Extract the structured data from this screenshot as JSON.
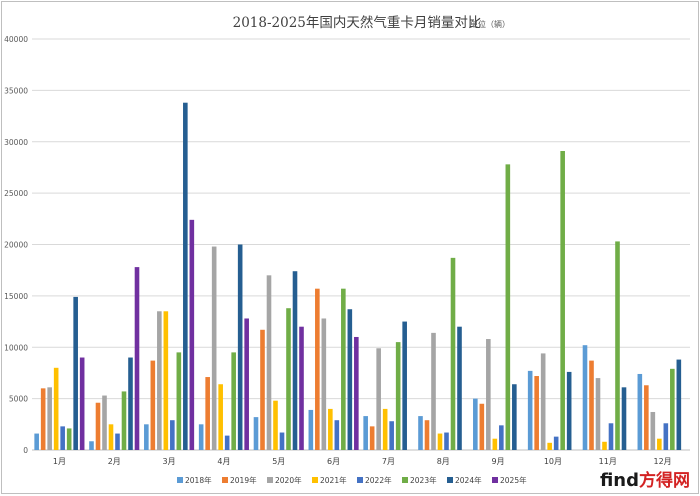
{
  "chart_data": {
    "type": "bar",
    "title": "2018-2025年国内天然气重卡月销量对比",
    "unit_note": "单位（辆）",
    "categories": [
      "1月",
      "2月",
      "3月",
      "4月",
      "5月",
      "6月",
      "7月",
      "8月",
      "9月",
      "10月",
      "11月",
      "12月"
    ],
    "ylim": [
      0,
      40000
    ],
    "yticks": [
      0,
      5000,
      10000,
      15000,
      20000,
      25000,
      30000,
      35000,
      40000
    ],
    "grid": true,
    "legend_position": "bottom",
    "series": [
      {
        "name": "2018年",
        "color": "#5b9bd5",
        "values": [
          1600,
          850,
          2500,
          2500,
          3200,
          3900,
          3300,
          3300,
          5000,
          7700,
          10200,
          7400
        ]
      },
      {
        "name": "2019年",
        "color": "#ed7d31",
        "values": [
          6000,
          4600,
          8700,
          7100,
          11700,
          15700,
          2300,
          2900,
          4500,
          7200,
          8700,
          6300
        ]
      },
      {
        "name": "2020年",
        "color": "#a5a5a5",
        "values": [
          6100,
          5300,
          13500,
          19800,
          17000,
          12800,
          9900,
          11400,
          10800,
          9400,
          7000,
          3700
        ]
      },
      {
        "name": "2021年",
        "color": "#ffc000",
        "values": [
          8000,
          2500,
          13500,
          6400,
          4800,
          4000,
          4000,
          1600,
          1100,
          700,
          800,
          1100
        ]
      },
      {
        "name": "2022年",
        "color": "#4472c4",
        "values": [
          2300,
          1600,
          2900,
          1400,
          1700,
          2900,
          2800,
          1700,
          2400,
          1300,
          2600,
          2600
        ]
      },
      {
        "name": "2023年",
        "color": "#70ad47",
        "values": [
          2100,
          5700,
          9500,
          9500,
          13800,
          15700,
          10500,
          18700,
          27800,
          29100,
          20300,
          7900
        ]
      },
      {
        "name": "2024年",
        "color": "#255e91",
        "values": [
          14900,
          9000,
          33800,
          20000,
          17400,
          13700,
          12500,
          12000,
          6400,
          7600,
          6100,
          8800
        ]
      },
      {
        "name": "2025年",
        "color": "#7030a0",
        "values": [
          9000,
          17800,
          22400,
          12800,
          12000,
          11000,
          null,
          null,
          null,
          null,
          null,
          null
        ]
      }
    ]
  },
  "watermark": {
    "main": "find",
    "sub": "方得网"
  }
}
